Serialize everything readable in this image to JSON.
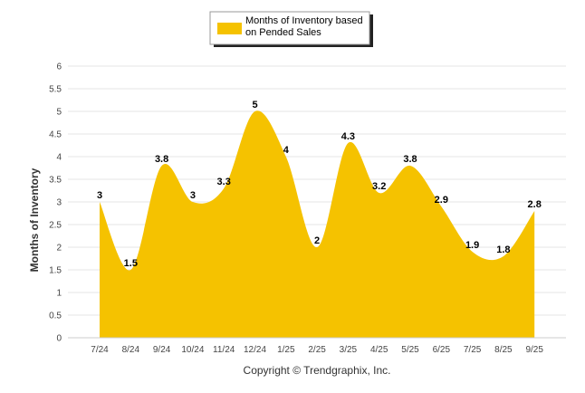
{
  "chart_data": {
    "type": "area",
    "title": "",
    "series": [
      {
        "name": "Months of Inventory based on Pended Sales",
        "values": [
          3,
          1.5,
          3.8,
          3,
          3.3,
          5,
          4,
          2,
          4.3,
          3.2,
          3.8,
          2.9,
          1.9,
          1.8,
          2.8
        ]
      }
    ],
    "categories": [
      "7/24",
      "8/24",
      "9/24",
      "10/24",
      "11/24",
      "12/24",
      "1/25",
      "2/25",
      "3/25",
      "4/25",
      "5/25",
      "6/25",
      "7/25",
      "8/25",
      "9/25"
    ],
    "data_labels": [
      "3",
      "1.5",
      "3.8",
      "3",
      "3.3",
      "5",
      "4",
      "2",
      "4.3",
      "3.2",
      "3.8",
      "2.9",
      "1.9",
      "1.8",
      "2.8"
    ],
    "yticks": [
      "0",
      "0.5",
      "1",
      "1.5",
      "2",
      "2.5",
      "3",
      "3.5",
      "4",
      "4.5",
      "5",
      "5.5",
      "6"
    ],
    "xlabel": "",
    "ylabel": "Months of Inventory",
    "ylim": [
      0,
      6
    ],
    "legend": {
      "line1": "Months of Inventory based",
      "line2": "on Pended Sales",
      "position": "top-center"
    },
    "colors": {
      "area": "#F5C200",
      "grid": "#e6e6e6"
    },
    "grid": true
  },
  "footer": {
    "copyright": "Copyright © Trendgraphix, Inc."
  }
}
